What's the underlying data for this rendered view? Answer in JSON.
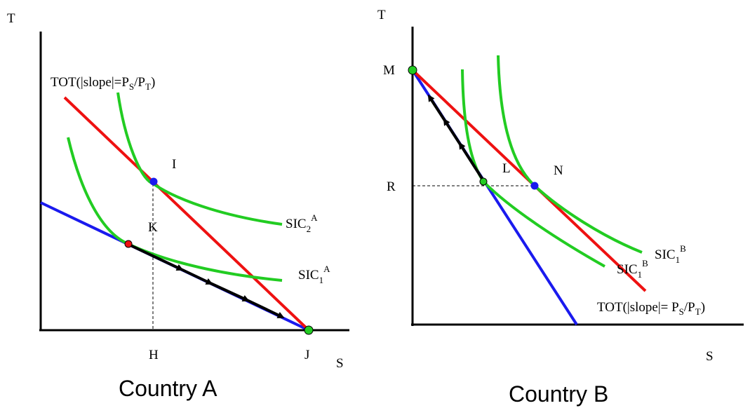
{
  "country_a": {
    "caption": "Country A",
    "axis_y": "T",
    "axis_x": "S",
    "tot": {
      "main": "TOT(|slope|=P",
      "sub1": "S",
      "mid": "/P",
      "sub2": "T",
      "end": ")"
    },
    "point_i": "I",
    "point_k": "K",
    "point_h": "H",
    "point_j": "J",
    "sic2": {
      "base": "SIC",
      "sub": "2",
      "sup": "A"
    },
    "sic1": {
      "base": "SIC",
      "sub": "1",
      "sup": "A"
    }
  },
  "country_b": {
    "caption": "Country B",
    "axis_y": "T",
    "axis_x": "S",
    "tot": {
      "main": "TOT(|slope|= P",
      "sub1": "S",
      "mid": "/P",
      "sub2": "T",
      "end": ")"
    },
    "point_m": "M",
    "point_r": "R",
    "point_l": "L",
    "point_n": "N",
    "sic_upper": {
      "base": "SIC",
      "sub": "1",
      "sup": "B"
    },
    "sic_lower": {
      "base": "SIC",
      "sub": "1",
      "sup": "B"
    }
  },
  "colors": {
    "tot_line": "#ee1111",
    "ppf_line": "#1a1aee",
    "indifference": "#22cc22",
    "trade_arrows": "#000000",
    "equilibrium_point": "#22cc22",
    "consumption_point": "#1a1aee",
    "autarky_point": "#ee1111"
  }
}
